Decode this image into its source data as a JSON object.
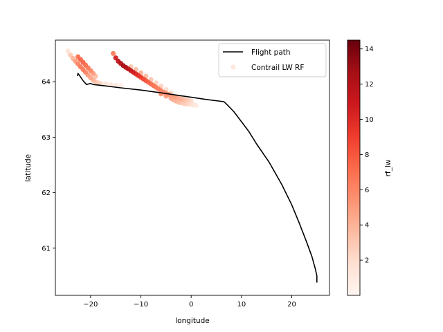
{
  "chart_data": {
    "type": "scatter",
    "title": "",
    "xlabel": "longitude",
    "ylabel": "latitude",
    "xlim": [
      -27,
      27.5
    ],
    "ylim": [
      60.15,
      64.75
    ],
    "xticks": [
      -20,
      -10,
      0,
      10,
      20
    ],
    "yticks": [
      61,
      62,
      63,
      64
    ],
    "grid": false,
    "legend_position": "top-right",
    "legend": {
      "flight": "Flight path",
      "contrail": "Contrail LW RF"
    },
    "colorbar": {
      "label": "rf_lw",
      "min": 0,
      "max": 14.5,
      "ticks": [
        2,
        4,
        6,
        8,
        10,
        12,
        14
      ],
      "colormap": [
        "#fff5f0",
        "#fee0d2",
        "#fcbba1",
        "#fc9272",
        "#fb6a4a",
        "#ef3b2c",
        "#cb181d",
        "#a50f15",
        "#67000d"
      ]
    },
    "flight_path": {
      "color": "#000000",
      "lon": [
        25.0,
        25.0,
        24.7,
        24.0,
        23.0,
        21.5,
        20.0,
        18.0,
        15.5,
        13.0,
        11.5,
        10.0,
        8.5,
        7.0,
        6.5,
        3.0,
        0.0,
        -3.0,
        -6.0,
        -10.0,
        -14.0,
        -17.5,
        -19.5,
        -20.0,
        -20.8,
        -21.5,
        -22.5,
        -22.6
      ],
      "lat": [
        60.38,
        60.5,
        60.62,
        60.85,
        61.1,
        61.45,
        61.78,
        62.15,
        62.55,
        62.88,
        63.1,
        63.28,
        63.46,
        63.6,
        63.64,
        63.68,
        63.72,
        63.76,
        63.8,
        63.85,
        63.89,
        63.93,
        63.95,
        63.97,
        63.95,
        64.02,
        64.15,
        64.1
      ]
    },
    "contrail": {
      "tracks": [
        {
          "name": "western",
          "lon": [
            -24.5,
            -24.0,
            -23.5,
            -23.0,
            -22.5,
            -22.0,
            -21.5,
            -21.0,
            -20.5,
            -20.0,
            -19.5,
            -19.0,
            -18.5,
            -18.0,
            -17.0,
            -16.0,
            -15.0,
            -14.0
          ],
          "lat": [
            64.55,
            64.48,
            64.42,
            64.37,
            64.32,
            64.27,
            64.22,
            64.17,
            64.12,
            64.07,
            64.03,
            64.0,
            63.98,
            63.97,
            63.96,
            63.95,
            63.94,
            63.93
          ],
          "rf": [
            1.5,
            3.0,
            4.0,
            5.0,
            6.0,
            6.5,
            6.5,
            6.0,
            5.0,
            4.5,
            4.0,
            3.0,
            2.5,
            2.0,
            1.5,
            1.2,
            1.0,
            0.8
          ]
        },
        {
          "name": "upper-right",
          "lon": [
            -22.5,
            -22.0,
            -21.5,
            -21.0,
            -20.5,
            -20.0,
            -19.5,
            -19.0
          ],
          "lat": [
            64.45,
            64.4,
            64.35,
            64.3,
            64.25,
            64.2,
            64.15,
            64.1
          ],
          "rf": [
            7.0,
            7.5,
            7.5,
            7.0,
            6.5,
            6.0,
            5.0,
            3.5
          ]
        },
        {
          "name": "eastern-core",
          "lon": [
            -15.5,
            -15.0,
            -14.5,
            -14.0,
            -13.5,
            -13.0,
            -12.5,
            -12.0,
            -11.5,
            -11.0,
            -10.5,
            -10.0,
            -9.5,
            -9.0,
            -8.5,
            -8.0,
            -7.5,
            -7.0,
            -6.5,
            -6.0,
            -5.5,
            -5.0,
            -4.5,
            -4.0,
            -3.5,
            -3.0,
            -2.5,
            -2.0,
            -1.5,
            -1.0,
            -0.5,
            0.0
          ],
          "lat": [
            64.51,
            64.43,
            64.37,
            64.33,
            64.29,
            64.26,
            64.23,
            64.2,
            64.17,
            64.14,
            64.11,
            64.08,
            64.05,
            64.02,
            63.99,
            63.96,
            63.93,
            63.9,
            63.87,
            63.84,
            63.81,
            63.79,
            63.77,
            63.75,
            63.73,
            63.72,
            63.7,
            63.69,
            63.68,
            63.67,
            63.66,
            63.65
          ],
          "rf": [
            6.5,
            10.5,
            11.5,
            12.0,
            12.5,
            12.0,
            11.5,
            11.0,
            10.5,
            10.0,
            9.5,
            9.0,
            8.5,
            8.0,
            7.5,
            7.0,
            6.8,
            6.5,
            6.2,
            6.0,
            5.8,
            5.5,
            5.2,
            5.0,
            4.8,
            4.5,
            4.2,
            4.0,
            3.5,
            3.0,
            2.5,
            2.0
          ]
        },
        {
          "name": "eastern-halo",
          "lon": [
            -12.0,
            -11.0,
            -10.0,
            -9.0,
            -8.0,
            -7.0,
            -6.0,
            -5.0,
            -4.0,
            -3.0,
            -2.0,
            -1.0,
            0.0,
            1.0
          ],
          "lat": [
            64.27,
            64.22,
            64.16,
            64.1,
            64.04,
            63.98,
            63.92,
            63.86,
            63.8,
            63.74,
            63.68,
            63.63,
            63.6,
            63.58
          ],
          "rf": [
            3.0,
            3.5,
            4.0,
            3.5,
            3.0,
            2.5,
            2.5,
            2.0,
            2.0,
            1.5,
            1.5,
            1.0,
            0.8,
            0.5
          ]
        },
        {
          "name": "southern-spread",
          "lon": [
            -6.0,
            -5.0,
            -4.0,
            -3.5,
            -3.0,
            -2.5,
            -2.0,
            -1.5,
            -1.0,
            -0.5,
            0.0,
            0.5,
            1.0
          ],
          "lat": [
            63.78,
            63.74,
            63.7,
            63.67,
            63.65,
            63.63,
            63.62,
            63.61,
            63.6,
            63.6,
            63.59,
            63.58,
            63.57
          ],
          "rf": [
            5.5,
            5.0,
            4.5,
            4.0,
            3.8,
            3.5,
            3.0,
            2.8,
            2.5,
            2.0,
            1.5,
            1.2,
            0.8
          ]
        }
      ]
    }
  }
}
